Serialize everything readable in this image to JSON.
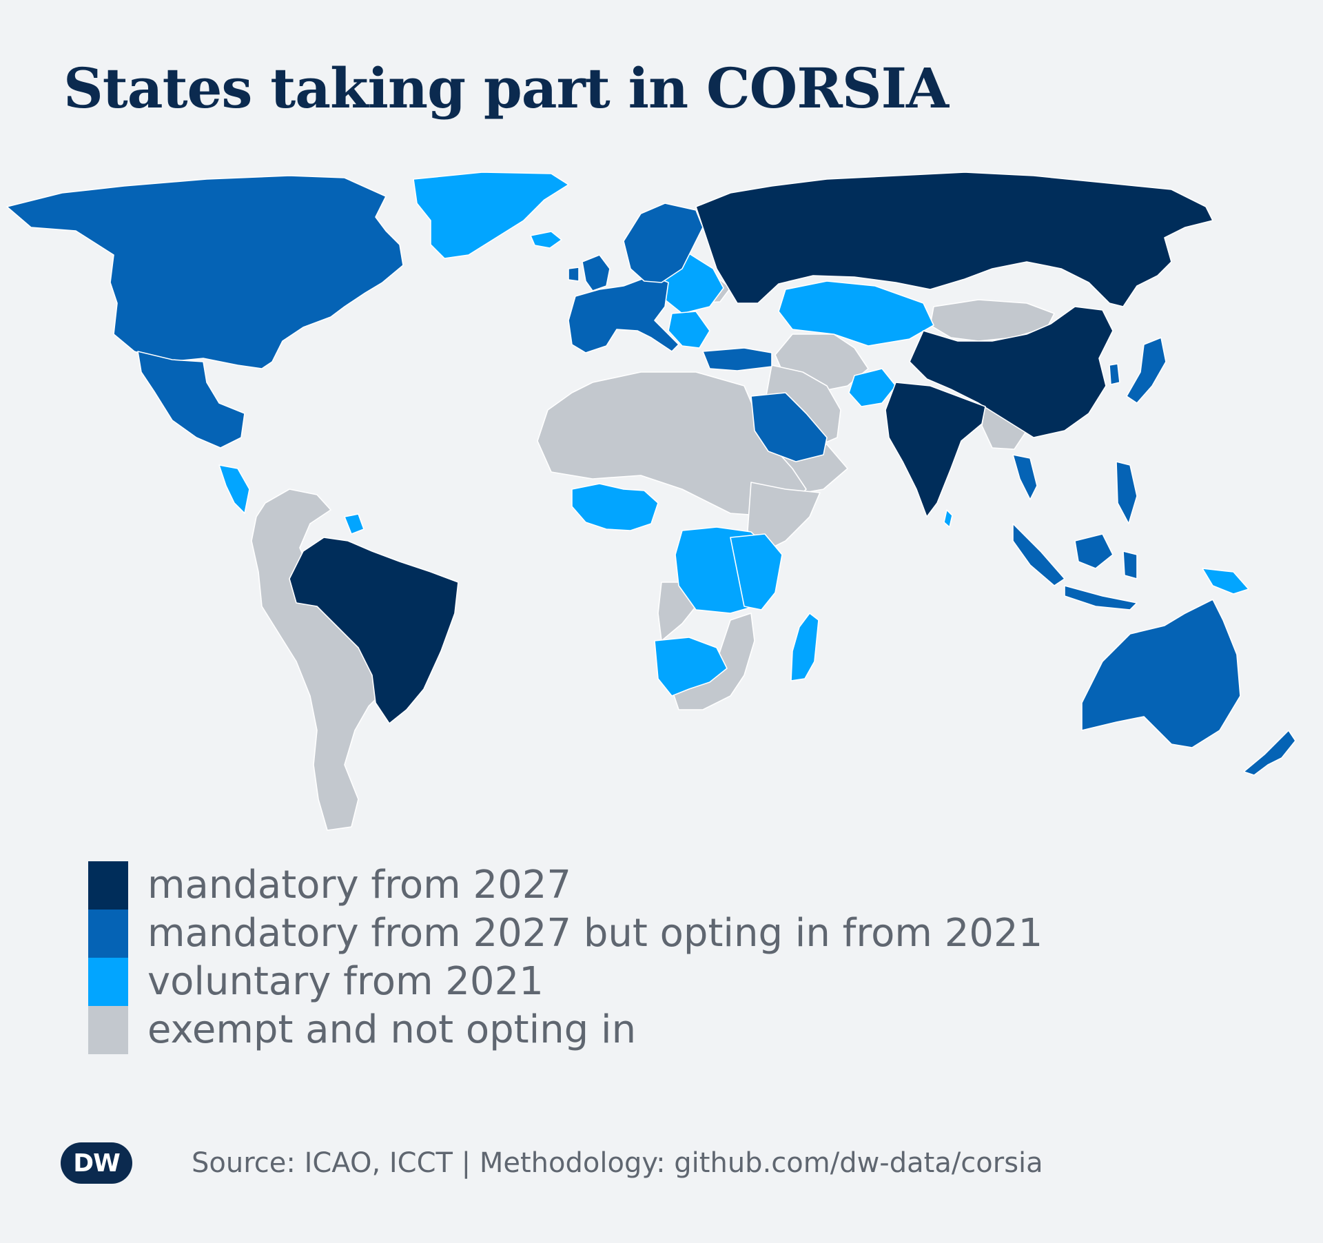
{
  "title": "States taking part in CORSIA",
  "legend": [
    {
      "label": "mandatory from 2027",
      "color": "#002d5a"
    },
    {
      "label": "mandatory from 2027 but opting in from 2021",
      "color": "#0563b5"
    },
    {
      "label": "voluntary from 2021",
      "color": "#02a5ff"
    },
    {
      "label": "exempt and not opting in",
      "color": "#c3c8ce"
    }
  ],
  "source": "Source: ICAO, ICCT | Methodology: github.com/dw-data/corsia",
  "logo": "DW",
  "colors": {
    "background": "#f1f3f5",
    "title": "#0b2a4f",
    "text": "#5f6670",
    "border": "#ffffff"
  }
}
